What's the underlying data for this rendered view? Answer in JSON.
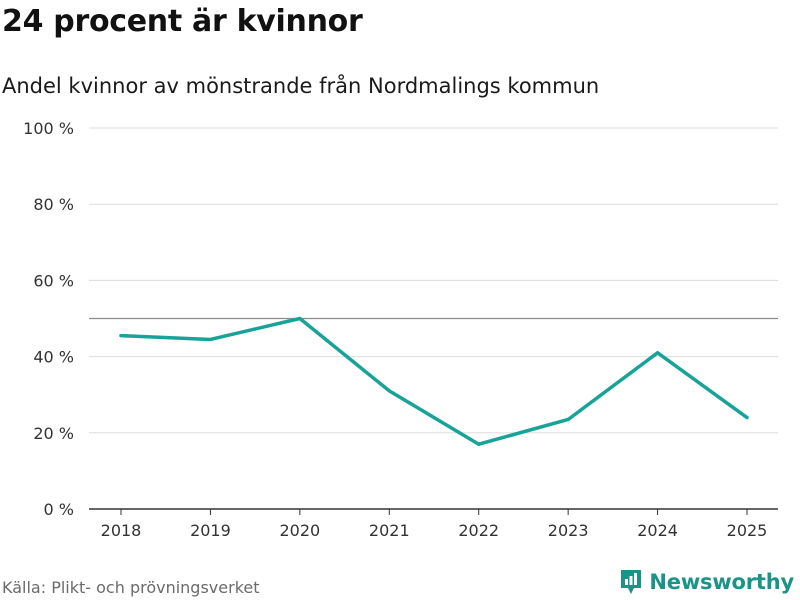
{
  "header": {
    "title": "24 procent är kvinnor",
    "subtitle": "Andel kvinnor av mönstrande från Nordmalings kommun"
  },
  "footer": {
    "source": "Källa: Plikt- och prövningsverket",
    "brand": "Newsworthy"
  },
  "colors": {
    "line": "#17a398",
    "reference": "#8c8c8c",
    "grid": "#dddddd",
    "axis": "#333333",
    "brand": "#1a9488"
  },
  "chart_data": {
    "type": "line",
    "title": "24 procent är kvinnor",
    "subtitle": "Andel kvinnor av mönstrande från Nordmalings kommun",
    "x": [
      "2018",
      "2019",
      "2020",
      "2021",
      "2022",
      "2023",
      "2024",
      "2025"
    ],
    "series": [
      {
        "name": "Andel kvinnor",
        "values": [
          45.5,
          44.5,
          50,
          31,
          17,
          23.5,
          41,
          24
        ]
      }
    ],
    "reference_line": 50,
    "ylim": [
      0,
      100
    ],
    "yticks": [
      0,
      20,
      40,
      60,
      80,
      100
    ],
    "ytick_suffix": " %",
    "grid": true,
    "xlabel": "",
    "ylabel": ""
  }
}
